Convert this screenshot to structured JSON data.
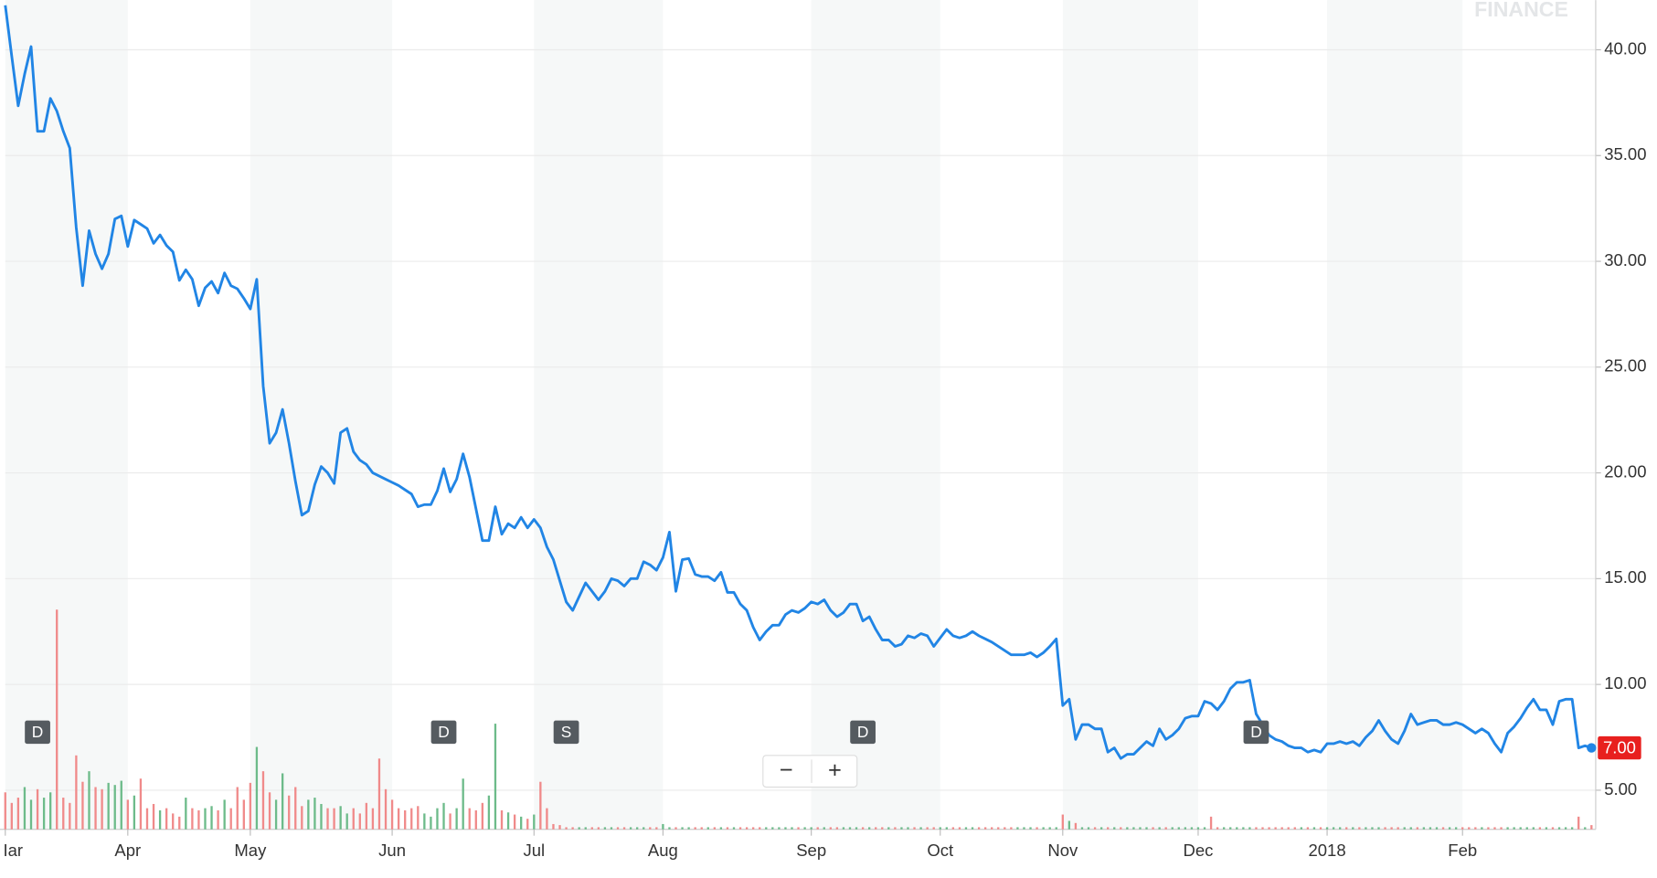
{
  "chart_data": {
    "type": "line",
    "watermark": "FINANCE",
    "color": "#2185e5",
    "values": [
      42.1,
      39.7,
      37.35,
      38.85,
      40.15,
      36.15,
      36.15,
      37.7,
      37.1,
      36.15,
      35.35,
      31.6,
      28.85,
      31.45,
      30.35,
      29.65,
      30.35,
      32.0,
      32.15,
      30.7,
      31.95,
      31.75,
      31.55,
      30.85,
      31.25,
      30.75,
      30.45,
      29.1,
      29.6,
      29.15,
      27.9,
      28.75,
      29.05,
      28.5,
      29.45,
      28.85,
      28.7,
      28.25,
      27.75,
      29.15,
      24.1,
      21.4,
      21.9,
      23.0,
      21.4,
      19.6,
      18.0,
      18.2,
      19.45,
      20.3,
      20.0,
      19.5,
      21.9,
      22.1,
      21.0,
      20.6,
      20.4,
      20.0,
      19.85,
      19.7,
      19.55,
      19.4,
      19.2,
      19.0,
      18.4,
      18.5,
      18.5,
      19.15,
      20.2,
      19.1,
      19.7,
      20.9,
      19.8,
      18.3,
      16.8,
      16.8,
      18.4,
      17.1,
      17.6,
      17.4,
      17.9,
      17.4,
      17.8,
      17.4,
      16.5,
      15.9,
      14.9,
      13.9,
      13.5,
      14.15,
      14.8,
      14.4,
      14.0,
      14.4,
      15.0,
      14.9,
      14.65,
      15.0,
      15.0,
      15.8,
      15.65,
      15.4,
      16.0,
      17.2,
      14.4,
      15.9,
      15.95,
      15.2,
      15.1,
      15.1,
      14.9,
      15.3,
      14.35,
      14.35,
      13.8,
      13.5,
      12.7,
      12.1,
      12.5,
      12.8,
      12.8,
      13.3,
      13.5,
      13.4,
      13.6,
      13.9,
      13.8,
      14.0,
      13.5,
      13.2,
      13.4,
      13.8,
      13.8,
      13.0,
      13.2,
      12.6,
      12.1,
      12.1,
      11.8,
      11.9,
      12.3,
      12.2,
      12.4,
      12.3,
      11.8,
      12.2,
      12.6,
      12.3,
      12.2,
      12.3,
      12.5,
      12.3,
      12.15,
      12.0,
      11.8,
      11.6,
      11.4,
      11.4,
      11.4,
      11.5,
      11.3,
      11.5,
      11.8,
      12.15,
      9.0,
      9.3,
      7.4,
      8.1,
      8.1,
      7.9,
      7.9,
      6.8,
      7.0,
      6.5,
      6.7,
      6.7,
      7.0,
      7.3,
      7.1,
      7.9,
      7.4,
      7.6,
      7.9,
      8.4,
      8.5,
      8.5,
      9.2,
      9.1,
      8.8,
      9.2,
      9.8,
      10.1,
      10.1,
      10.2,
      8.6,
      8.1,
      7.6,
      7.4,
      7.3,
      7.1,
      7.0,
      7.0,
      6.8,
      6.9,
      6.8,
      7.2,
      7.2,
      7.3,
      7.2,
      7.3,
      7.1,
      7.5,
      7.8,
      8.3,
      7.8,
      7.4,
      7.2,
      7.8,
      8.6,
      8.1,
      8.2,
      8.3,
      8.3,
      8.1,
      8.1,
      8.2,
      8.1,
      7.9,
      7.7,
      7.9,
      7.7,
      7.2,
      6.8,
      7.7,
      8.0,
      8.4,
      8.9,
      9.3,
      8.8,
      8.8,
      8.1,
      9.2,
      9.3,
      9.3,
      7.0,
      7.1,
      7.0
    ],
    "volume": [
      35,
      25,
      30,
      40,
      28,
      38,
      30,
      35,
      208,
      30,
      25,
      70,
      45,
      55,
      40,
      38,
      44,
      42,
      46,
      28,
      32,
      48,
      20,
      24,
      18,
      20,
      15,
      12,
      30,
      20,
      18,
      20,
      22,
      18,
      28,
      20,
      40,
      28,
      44,
      78,
      55,
      35,
      28,
      53,
      32,
      40,
      22,
      28,
      30,
      24,
      20,
      20,
      22,
      15,
      20,
      15,
      25,
      20,
      67,
      38,
      28,
      20,
      18,
      20,
      22,
      15,
      12,
      20,
      25,
      15,
      20,
      48,
      20,
      18,
      25,
      32,
      100,
      18,
      16,
      14,
      12,
      10,
      14,
      45,
      20,
      5,
      4,
      2,
      2,
      2,
      2,
      2,
      2,
      2,
      2,
      2,
      2,
      2,
      2,
      2,
      2,
      2,
      5,
      2,
      2,
      2,
      2,
      2,
      2,
      2,
      2,
      2,
      2,
      2,
      2,
      2,
      2,
      2,
      2,
      2,
      2,
      2,
      2,
      2,
      2,
      2,
      2,
      2,
      2,
      2,
      2,
      2,
      2,
      2,
      2,
      2,
      2,
      2,
      2,
      2,
      2,
      2,
      2,
      2,
      2,
      2,
      2,
      2,
      2,
      2,
      2,
      2,
      2,
      2,
      2,
      2,
      2,
      2,
      2,
      2,
      2,
      2,
      2,
      2,
      14,
      8,
      6,
      2,
      2,
      2,
      2,
      2,
      2,
      2,
      2,
      2,
      2,
      2,
      2,
      2,
      2,
      2,
      2,
      2,
      2,
      2,
      2,
      12,
      2,
      2,
      2,
      2,
      2,
      2,
      2,
      2,
      2,
      2,
      2,
      2,
      2,
      2,
      2,
      2,
      2,
      2,
      2,
      2,
      2,
      2,
      2,
      2,
      2,
      2,
      2,
      2,
      2,
      2,
      2,
      2,
      2,
      2,
      2,
      2,
      2,
      2,
      2,
      2,
      2,
      2,
      2,
      2,
      2,
      2,
      2,
      2,
      2,
      2,
      2,
      2,
      2,
      2,
      2,
      2,
      12,
      2,
      4
    ],
    "volume_lim": [
      0,
      230
    ],
    "up_color": "#6dbb8a",
    "down_color": "#f08a8a",
    "xlim": [
      0,
      246
    ],
    "xticks": [
      {
        "value": 0,
        "label": "Iar"
      },
      {
        "value": 19,
        "label": "Apr"
      },
      {
        "value": 38,
        "label": "May"
      },
      {
        "value": 60,
        "label": "Jun"
      },
      {
        "value": 82,
        "label": "Jul"
      },
      {
        "value": 102,
        "label": "Aug"
      },
      {
        "value": 125,
        "label": "Sep"
      },
      {
        "value": 145,
        "label": "Oct"
      },
      {
        "value": 164,
        "label": "Nov"
      },
      {
        "value": 185,
        "label": "Dec"
      },
      {
        "value": 205,
        "label": "2018"
      },
      {
        "value": 226,
        "label": "Feb"
      }
    ],
    "ylim": [
      3.15,
      42.35
    ],
    "yticks": [
      {
        "value": 5,
        "label": "5.00"
      },
      {
        "value": 10,
        "label": "10.00"
      },
      {
        "value": 15,
        "label": "15.00"
      },
      {
        "value": 20,
        "label": "20.00"
      },
      {
        "value": 25,
        "label": "25.00"
      },
      {
        "value": 30,
        "label": "30.00"
      },
      {
        "value": 35,
        "label": "35.00"
      },
      {
        "value": 40,
        "label": "40.00"
      }
    ],
    "grid": true,
    "last_price": {
      "value": 7,
      "label": "7.00"
    },
    "events": [
      {
        "x": 5,
        "label": "D"
      },
      {
        "x": 68,
        "label": "D"
      },
      {
        "x": 87,
        "label": "S"
      },
      {
        "x": 133,
        "label": "D"
      },
      {
        "x": 194,
        "label": "D"
      }
    ],
    "zoom_out": "−",
    "zoom_in": "+"
  }
}
